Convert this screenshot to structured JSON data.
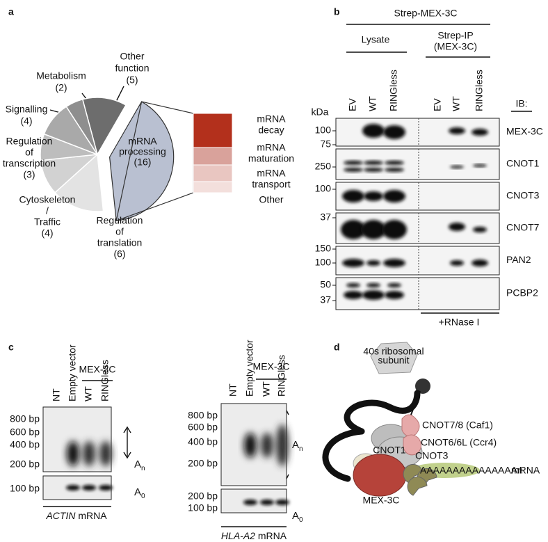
{
  "panel_labels": [
    "a",
    "b",
    "c",
    "d"
  ],
  "panel_a": {
    "slices": [
      {
        "name": [
          "Other",
          "function"
        ],
        "value": 5,
        "value_label": "(5)",
        "color": "#6d6d6d"
      },
      {
        "name": [
          "mRNA",
          "processing"
        ],
        "value": 16,
        "value_label": "(16)",
        "color": "#b9c0d1"
      },
      {
        "name": [
          "Regulation",
          "of",
          "translation"
        ],
        "value": 6,
        "value_label": "(6)",
        "color": "#e3e3e3"
      },
      {
        "name": [
          "Cytoskeleton",
          "/",
          "Traffic"
        ],
        "value": 4,
        "value_label": "(4)",
        "color": "#d2d2d2"
      },
      {
        "name": [
          "Regulation",
          "of",
          "transcription"
        ],
        "value": 3,
        "value_label": "(3)",
        "color": "#bdbdbd"
      },
      {
        "name": [
          "Signalling"
        ],
        "value": 4,
        "value_label": "(4)",
        "color": "#a9a9a9"
      },
      {
        "name": [
          "Metabolism"
        ],
        "value": 2,
        "value_label": "(2)",
        "color": "#8e8e8e"
      }
    ],
    "breakdown": [
      {
        "name": [
          "mRNA",
          "decay"
        ],
        "color": "#b3301c"
      },
      {
        "name": [
          "mRNA",
          "maturation"
        ],
        "color": "#d9a29b"
      },
      {
        "name": [
          "mRNA",
          "transport"
        ],
        "color": "#e9c6c1"
      },
      {
        "name": [
          "Other"
        ],
        "color": "#f3dfdc"
      }
    ]
  },
  "panel_b": {
    "header": "Strep-MEX-3C",
    "lysate": "Lysate",
    "strep_ip": [
      "Strep-IP",
      "(MEX-3C)"
    ],
    "lanes": [
      "EV",
      "WT",
      "RINGless",
      "EV",
      "WT",
      "RINGless"
    ],
    "ib": "IB:",
    "kda": "kDa",
    "blots": [
      {
        "protein": "MEX-3C",
        "markers": [
          100,
          75
        ]
      },
      {
        "protein": "CNOT1",
        "markers": [
          250
        ]
      },
      {
        "protein": "CNOT3",
        "markers": [
          100
        ]
      },
      {
        "protein": "CNOT7",
        "markers": [
          37
        ]
      },
      {
        "protein": "PAN2",
        "markers": [
          150,
          100
        ]
      },
      {
        "protein": "PCBP2",
        "markers": [
          50,
          37
        ]
      }
    ],
    "rnase": "+RNase I"
  },
  "panel_c": {
    "gels": [
      {
        "lanes": [
          "NT",
          "Empty vector",
          "WT",
          "RINGless"
        ],
        "group": "MEX-3C",
        "markers": [
          "800 bp",
          "600 bp",
          "400 bp",
          "200 bp"
        ],
        "lower_markers": [
          "100 bp"
        ],
        "an": {
          "base": "A",
          "sub": "n"
        },
        "a0": {
          "base": "A",
          "sub": "0"
        },
        "gene": "ACTIN",
        "suffix": "mRNA"
      },
      {
        "lanes": [
          "NT",
          "Empty vector",
          "WT",
          "RINGless"
        ],
        "group": "MEX-3C",
        "markers": [
          "800 bp",
          "600 bp",
          "400 bp",
          "200 bp"
        ],
        "lower_markers": [
          "200 bp",
          "100 bp"
        ],
        "an": {
          "base": "A",
          "sub": "n"
        },
        "a0": {
          "base": "A",
          "sub": "0"
        },
        "gene": "HLA-A2",
        "suffix": "mRNA"
      }
    ]
  },
  "panel_d": {
    "ribosome": [
      "40s ribosomal",
      "subunit"
    ],
    "cnot1": "CNOT1",
    "cnot7": "CNOT7/8 (Caf1)",
    "cnot6": "CNOT6/6L (Ccr4)",
    "cnot3": "CNOT3",
    "poly_a": "AAAAAAAAAAAAAAAn",
    "mrna": "mRNA",
    "mex3c": "MEX-3C"
  }
}
